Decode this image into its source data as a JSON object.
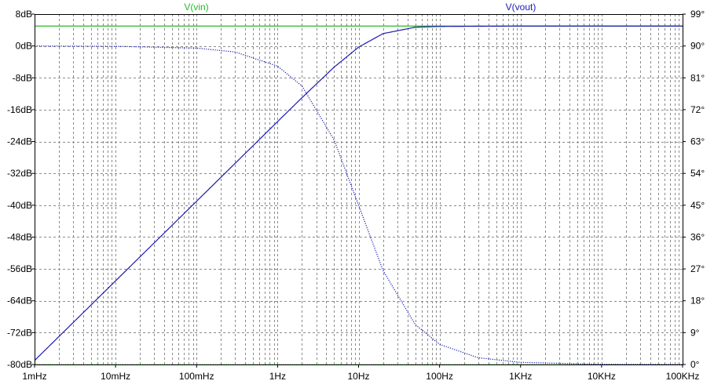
{
  "chart_data": {
    "type": "line",
    "x_scale": "log",
    "xlim": [
      0.001,
      100000
    ],
    "ylim_left": [
      -80,
      8
    ],
    "ylim_right": [
      0,
      99
    ],
    "grid": true,
    "x_ticks": [
      {
        "value": 0.001,
        "label": "1mHz"
      },
      {
        "value": 0.01,
        "label": "10mHz"
      },
      {
        "value": 0.1,
        "label": "100mHz"
      },
      {
        "value": 1,
        "label": "1Hz"
      },
      {
        "value": 10,
        "label": "10Hz"
      },
      {
        "value": 100,
        "label": "100Hz"
      },
      {
        "value": 1000,
        "label": "1KHz"
      },
      {
        "value": 10000,
        "label": "10KHz"
      },
      {
        "value": 100000,
        "label": "100KHz"
      }
    ],
    "y_left_ticks": [
      {
        "value": 8,
        "label": "8dB"
      },
      {
        "value": 0,
        "label": "0dB"
      },
      {
        "value": -8,
        "label": "-8dB"
      },
      {
        "value": -16,
        "label": "-16dB"
      },
      {
        "value": -24,
        "label": "-24dB"
      },
      {
        "value": -32,
        "label": "-32dB"
      },
      {
        "value": -40,
        "label": "-40dB"
      },
      {
        "value": -48,
        "label": "-48dB"
      },
      {
        "value": -56,
        "label": "-56dB"
      },
      {
        "value": -64,
        "label": "-64dB"
      },
      {
        "value": -72,
        "label": "-72dB"
      },
      {
        "value": -80,
        "label": "-80dB"
      }
    ],
    "y_right_ticks": [
      {
        "value": 99,
        "label": "99°"
      },
      {
        "value": 90,
        "label": "90°"
      },
      {
        "value": 81,
        "label": "81°"
      },
      {
        "value": 72,
        "label": "72°"
      },
      {
        "value": 63,
        "label": "63°"
      },
      {
        "value": 54,
        "label": "54°"
      },
      {
        "value": 45,
        "label": "45°"
      },
      {
        "value": 36,
        "label": "36°"
      },
      {
        "value": 27,
        "label": "27°"
      },
      {
        "value": 18,
        "label": "18°"
      },
      {
        "value": 9,
        "label": "9°"
      },
      {
        "value": 0,
        "label": "0°"
      }
    ],
    "series": [
      {
        "name": "V(vin)",
        "color": "#22bb22",
        "magnitude_db": {
          "x": [
            0.001,
            100000
          ],
          "y": [
            5,
            5
          ]
        },
        "phase_deg": {
          "x": [
            0.001,
            100000
          ],
          "y": [
            0,
            0
          ]
        }
      },
      {
        "name": "V(vout)",
        "color": "#1a1ab0",
        "magnitude_db": {
          "x": [
            0.001,
            0.01,
            0.1,
            1,
            2,
            5,
            10,
            20,
            50,
            100,
            1000,
            10000,
            100000
          ],
          "y": [
            -79,
            -59,
            -39,
            -19,
            -13,
            -5.3,
            -0.3,
            3.1,
            4.7,
            4.9,
            5,
            5,
            5
          ]
        },
        "phase_deg": {
          "x": [
            0.001,
            0.01,
            0.1,
            0.3,
            1,
            2,
            5,
            10,
            20,
            50,
            100,
            300,
            1000,
            10000,
            100000
          ],
          "y": [
            90,
            89.9,
            89.4,
            88.3,
            84.3,
            78.7,
            63.4,
            45,
            26.6,
            11.3,
            5.7,
            1.9,
            0.6,
            0.06,
            0
          ]
        }
      }
    ]
  }
}
